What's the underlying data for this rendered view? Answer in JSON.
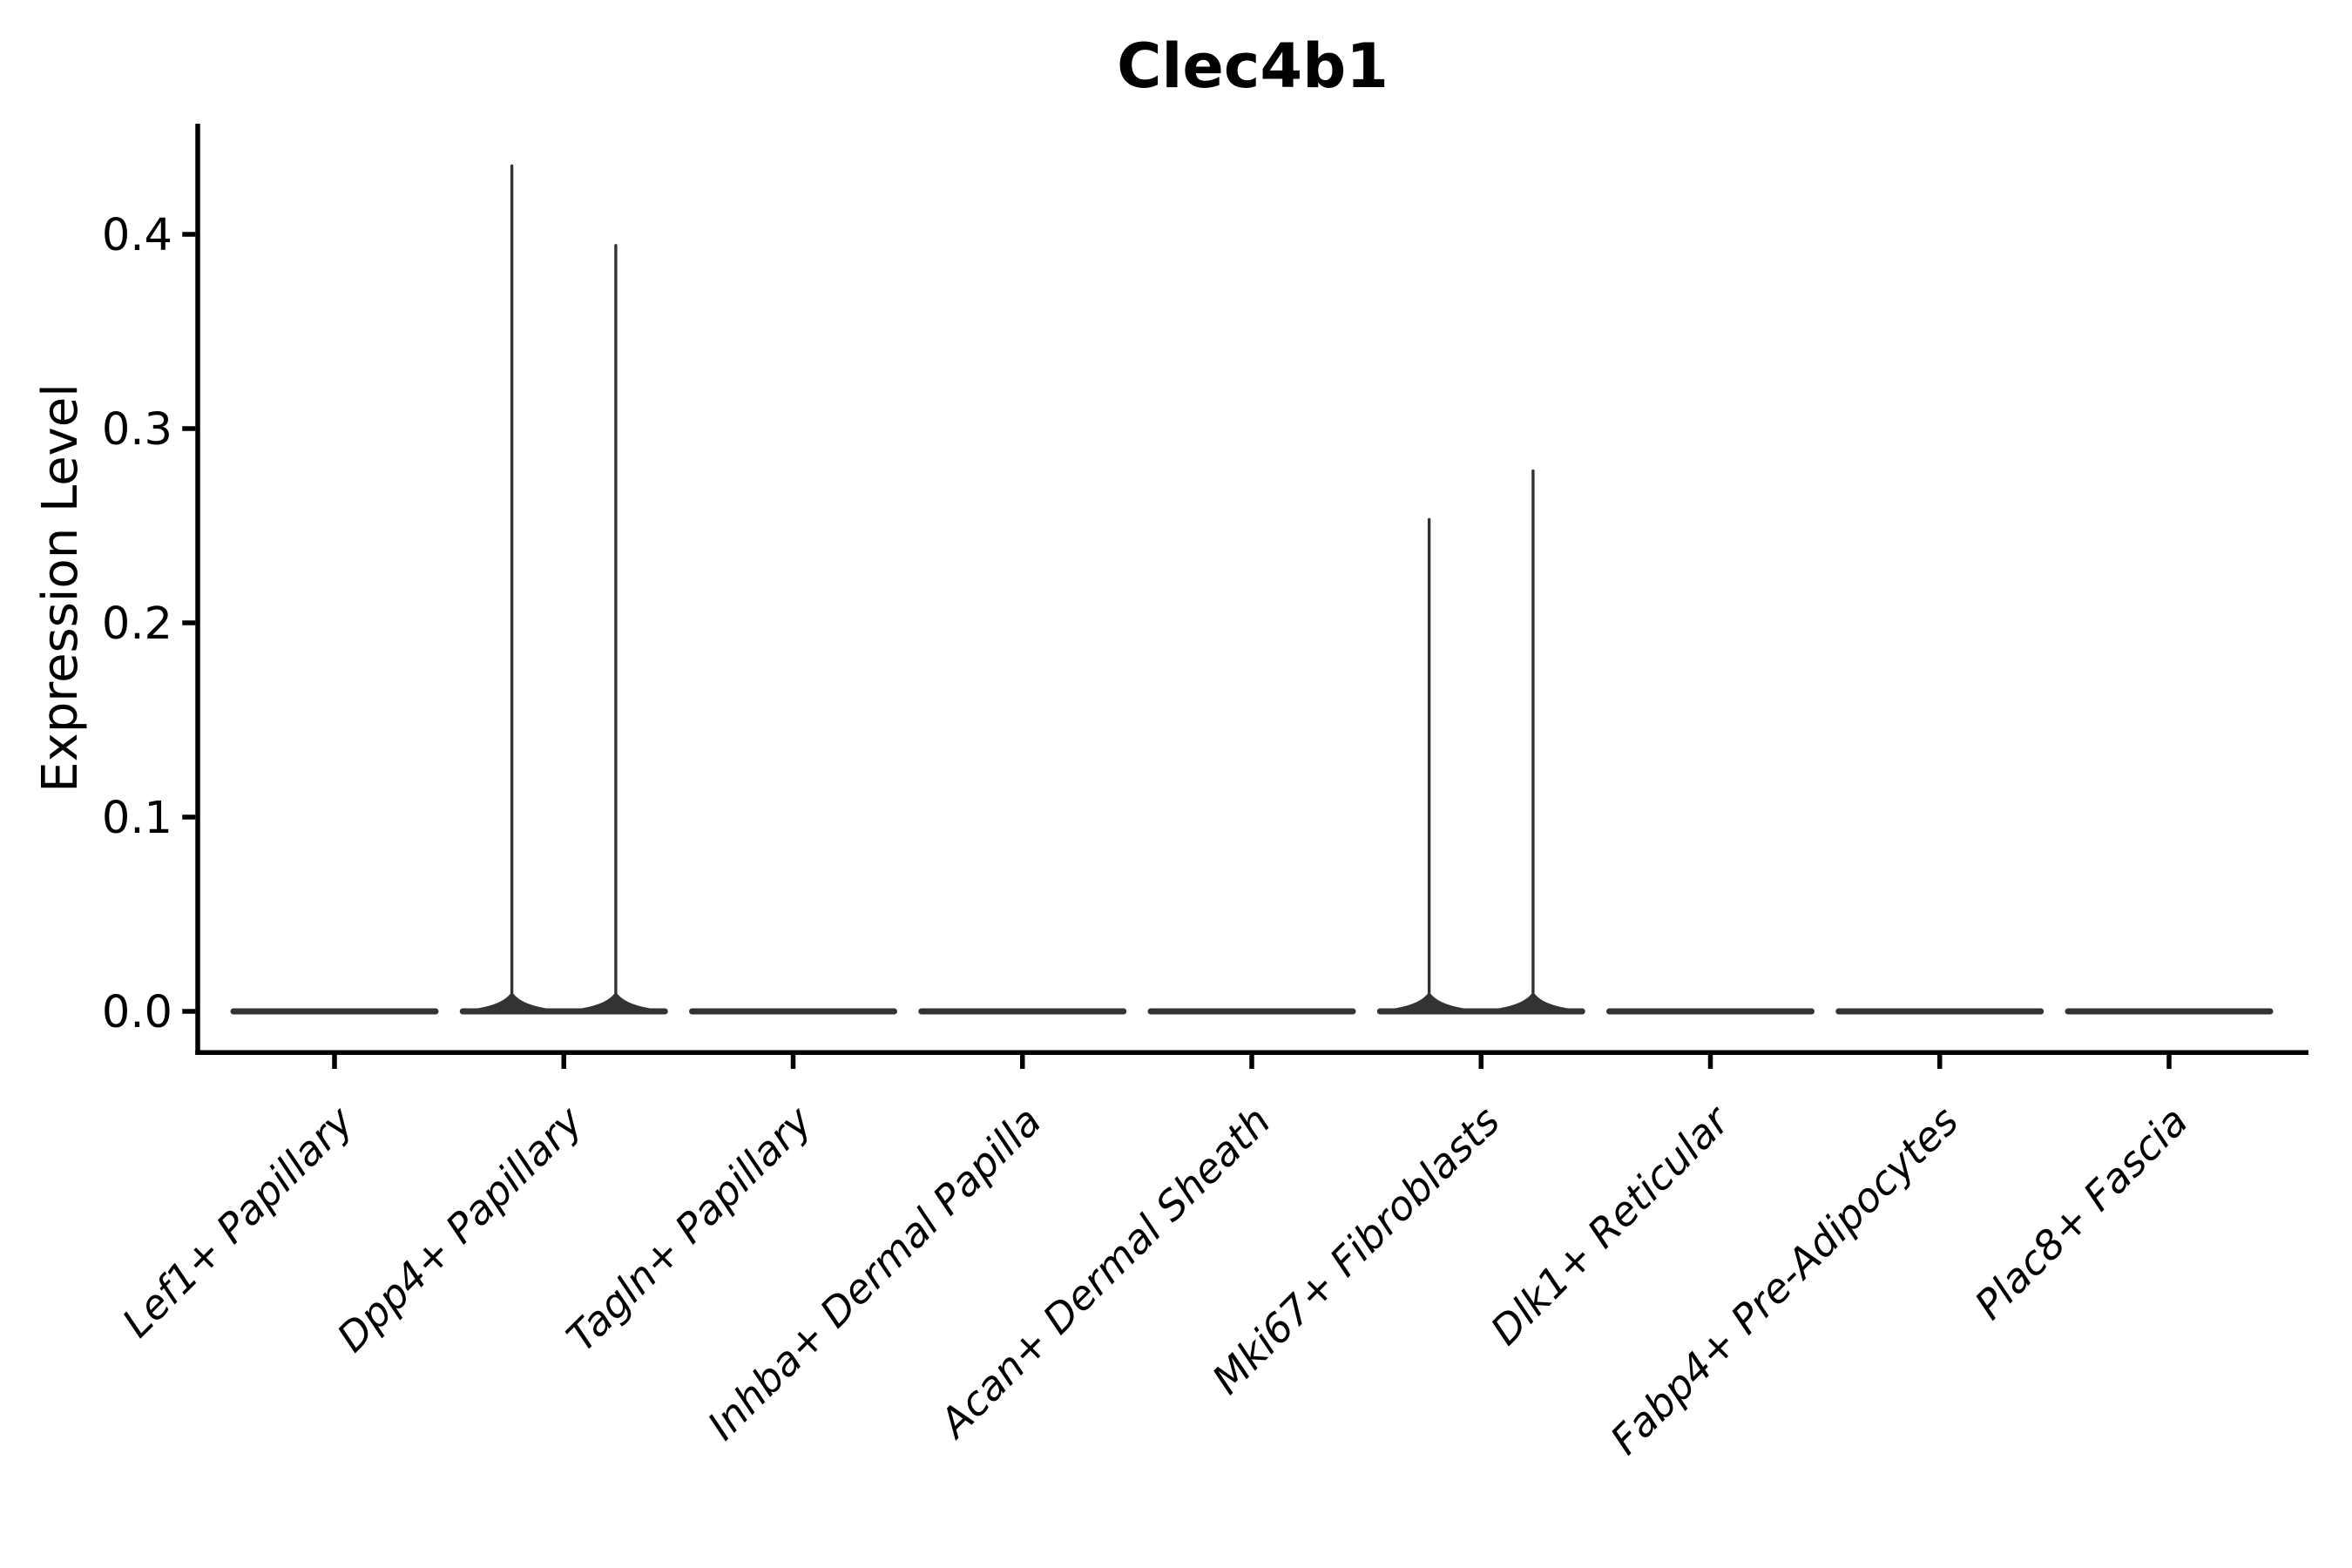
{
  "figure": {
    "background": "#ffffff"
  },
  "chart_data": {
    "type": "violin",
    "title": "Clec4b1",
    "ylabel": "Expression Level",
    "xlabel": "",
    "categories": [
      "Lef1+ Papillary",
      "Dpp4+ Papillary",
      "Tagln+ Papillary",
      "Inhba+ Dermal Papilla",
      "Acan+ Dermal Sheath",
      "Mki67+ Fibroblasts",
      "Dlk1+ Reticular",
      "Fabp4+ Pre-Adipocytes",
      "Plac8+ Fascia"
    ],
    "yticks": [
      0.0,
      0.1,
      0.2,
      0.3,
      0.4
    ],
    "ytick_labels": [
      "0.0",
      "0.1",
      "0.2",
      "0.3",
      "0.4"
    ],
    "ylim": [
      -0.021,
      0.457
    ],
    "violins_per_category": 2,
    "series": [
      {
        "name": "violin-left",
        "max_values": [
          0,
          0.436,
          0,
          0,
          0,
          0.254,
          0,
          0,
          0
        ]
      },
      {
        "name": "violin-right",
        "max_values": [
          0,
          0.395,
          0,
          0,
          0,
          0.279,
          0,
          0,
          0
        ]
      }
    ],
    "baseline_value": 0.0,
    "legend": null,
    "grid": false,
    "colors": {
      "violin": "#333333",
      "axis": "#000000",
      "text": "#000000",
      "background": "#ffffff"
    }
  }
}
